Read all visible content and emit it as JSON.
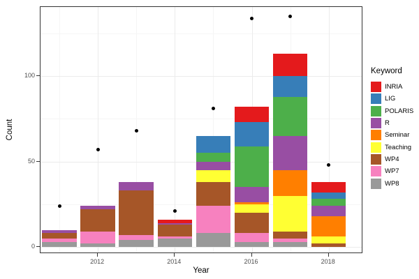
{
  "chart_data": {
    "type": "bar",
    "stacked": true,
    "title": "",
    "xlabel": "Year",
    "ylabel": "Count",
    "legend_title": "Keyword",
    "legend_position": "right",
    "grid": true,
    "categories": [
      "2011",
      "2012",
      "2013",
      "2014",
      "2015",
      "2016",
      "2017",
      "2018"
    ],
    "series": [
      {
        "name": "INRIA",
        "color": "#E41A1C",
        "values": [
          0,
          0,
          0,
          2,
          0,
          9,
          13,
          6
        ]
      },
      {
        "name": "LIG",
        "color": "#377EB8",
        "values": [
          0,
          0,
          0,
          0,
          10,
          14,
          12,
          4
        ]
      },
      {
        "name": "POLARIS",
        "color": "#4DAF4A",
        "values": [
          0,
          0,
          0,
          0,
          5,
          24,
          23,
          4
        ]
      },
      {
        "name": "R",
        "color": "#984EA3",
        "values": [
          2,
          2,
          5,
          1,
          5,
          9,
          20,
          6
        ]
      },
      {
        "name": "Seminar",
        "color": "#FF7F00",
        "values": [
          0,
          0,
          0,
          0,
          0,
          1,
          15,
          12
        ]
      },
      {
        "name": "Teaching",
        "color": "#FFFF33",
        "values": [
          0,
          0,
          0,
          0,
          7,
          5,
          21,
          4
        ]
      },
      {
        "name": "WP4",
        "color": "#A65628",
        "values": [
          3,
          13,
          26,
          7,
          14,
          12,
          4,
          2
        ]
      },
      {
        "name": "WP7",
        "color": "#F781BF",
        "values": [
          2,
          7,
          3,
          1,
          16,
          5,
          2,
          0
        ]
      },
      {
        "name": "WP8",
        "color": "#999999",
        "values": [
          3,
          2,
          4,
          5,
          8,
          3,
          3,
          0
        ]
      }
    ],
    "bar_totals": [
      10,
      24,
      38,
      16,
      65,
      82,
      113,
      38
    ],
    "points": {
      "name": "yearly-total-points",
      "color": "#000000",
      "values": [
        24,
        57,
        68,
        21,
        81,
        134,
        135,
        48
      ]
    },
    "stack_order": "first series listed is on top of stack",
    "ylim": [
      0,
      141
    ],
    "y_major_ticks": [
      0,
      50,
      100
    ],
    "y_tick_labels": [
      "0",
      "50",
      "100"
    ],
    "y_minor_ticks": [
      25,
      75,
      125
    ],
    "x_major_ticks": [
      2012,
      2014,
      2016,
      2018
    ],
    "x_tick_labels": [
      "2012",
      "2014",
      "2016",
      "2018"
    ],
    "x_minor_ticks": [
      2011,
      2013,
      2015,
      2017
    ]
  }
}
